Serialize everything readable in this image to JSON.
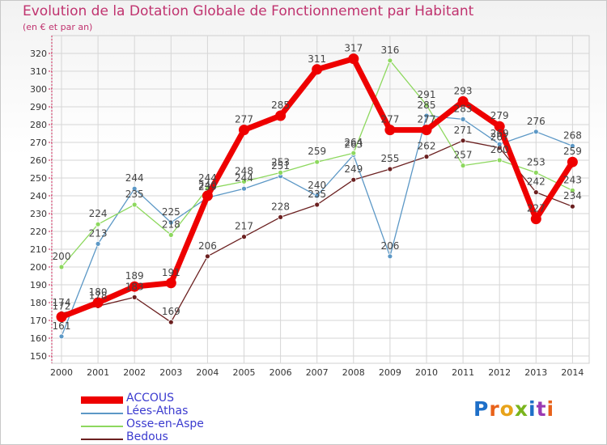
{
  "header": {
    "title": "Evolution de la Dotation Globale de Fonctionnement par Habitant",
    "subtitle": "(en € et par an)"
  },
  "chart_data": {
    "type": "line",
    "title": "Evolution de la Dotation Globale de Fonctionnement par Habitant",
    "subtitle": "(en € et par an)",
    "xlabel": "",
    "ylabel": "",
    "ylim": [
      150,
      320
    ],
    "ytick_step": 10,
    "grid": true,
    "legend_position": "bottom-left",
    "x": [
      "2000",
      "2001",
      "2002",
      "2003",
      "2004",
      "2005",
      "2006",
      "2007",
      "2008",
      "2009",
      "2010",
      "2011",
      "2012",
      "2013",
      "2014"
    ],
    "series": [
      {
        "name": "ACCOUS",
        "color": "#ee0000",
        "values": [
          172,
          180,
          189,
          191,
          240,
          277,
          285,
          311,
          317,
          277,
          277,
          293,
          279,
          227,
          259
        ]
      },
      {
        "name": "Lées-Athas",
        "color": "#5c98c6",
        "values": [
          161,
          213,
          244,
          225,
          239,
          244,
          251,
          240,
          263,
          206,
          285,
          283,
          269,
          276,
          268
        ]
      },
      {
        "name": "Osse-en-Aspe",
        "color": "#8dd85e",
        "values": [
          200,
          224,
          235,
          218,
          244,
          248,
          253,
          259,
          264,
          316,
          291,
          257,
          260,
          253,
          243
        ]
      },
      {
        "name": "Bedous",
        "color": "#6b2020",
        "values": [
          174,
          178,
          183,
          169,
          206,
          217,
          228,
          235,
          249,
          255,
          262,
          271,
          267,
          242,
          234
        ]
      }
    ]
  },
  "branding": {
    "logo_text": "Proxiti",
    "letter_colors": [
      "#1e6fc8",
      "#e8621a",
      "#e8a31a",
      "#7ab51d",
      "#1e6fc8",
      "#9a3ab3",
      "#e8621a"
    ]
  }
}
